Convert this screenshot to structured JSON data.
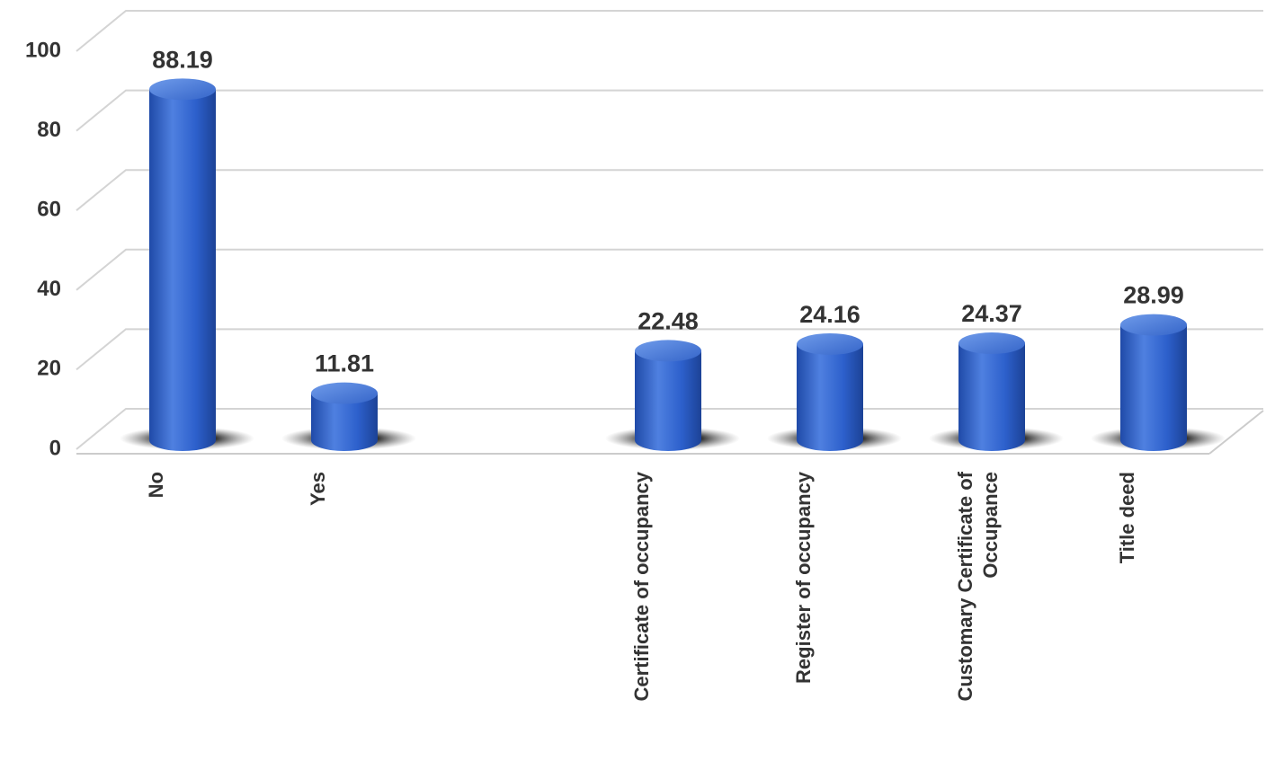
{
  "chart_data": {
    "type": "bar",
    "categories": [
      "No",
      "Yes",
      null,
      "Certificate of occupancy",
      "Register of occupancy",
      "Customary Certificate of Occupance",
      "Title deed"
    ],
    "values": [
      88.19,
      11.81,
      null,
      22.48,
      24.16,
      24.37,
      28.99
    ],
    "color": "#2f62cf",
    "ylim": [
      0,
      100
    ],
    "yticks": [
      0,
      20,
      40,
      60,
      80,
      100
    ],
    "grid": true
  }
}
